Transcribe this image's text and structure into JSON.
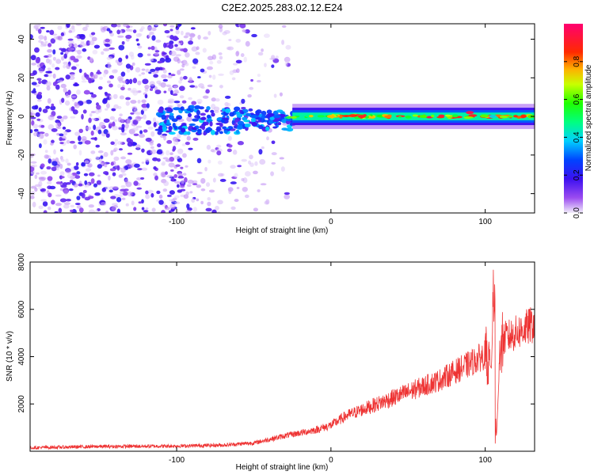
{
  "title": "C2E2.2025.283.02.12.E24",
  "chart_data": [
    {
      "type": "heatmap",
      "xlabel": "Height of straight line (km)",
      "ylabel": "Frequency (Hz)",
      "xlim": [
        -195,
        132
      ],
      "ylim": [
        -50,
        48
      ],
      "xticks": [
        -100,
        0,
        100
      ],
      "xtick_labels": [
        "-100",
        "0",
        "100"
      ],
      "yticks": [
        -40,
        -20,
        0,
        20,
        40
      ],
      "ytick_labels": [
        "-40",
        "-20",
        "0",
        "20",
        "40"
      ],
      "colorbar": {
        "label": "Normalized spectral amplitude",
        "range": [
          0,
          1
        ],
        "ticks": [
          0.0,
          0.2,
          0.4,
          0.6,
          0.8
        ],
        "tick_labels": [
          "0.0",
          "0.2",
          "0.4",
          "0.6",
          "0.8"
        ],
        "colormap": "rainbow (violet → blue → cyan → green → yellow → red → magenta)"
      },
      "description_points": [
        {
          "x": -100,
          "y": 4,
          "amp": 0.3
        },
        {
          "x": -50,
          "y": 0,
          "amp": 0.3
        },
        {
          "x": -35,
          "y": 0,
          "amp": 0.3
        },
        {
          "x": 0,
          "y": 0,
          "amp": 0.75
        },
        {
          "x": 20,
          "y": 0,
          "amp": 0.9
        },
        {
          "x": 60,
          "y": 0,
          "amp": 0.6
        },
        {
          "x": 90,
          "y": 2,
          "amp": 0.95
        },
        {
          "x": 105,
          "y": 0,
          "amp": 0.4
        },
        {
          "x": 130,
          "y": 0,
          "amp": 0.6
        }
      ]
    },
    {
      "type": "line",
      "xlabel": "Height of straight line (km)",
      "ylabel": "SNR (10 * v/v)",
      "xlim": [
        -195,
        132
      ],
      "ylim": [
        0,
        8000
      ],
      "xticks": [
        -100,
        0,
        100
      ],
      "xtick_labels": [
        "-100",
        "0",
        "100"
      ],
      "yticks": [
        2000,
        4000,
        6000,
        8000
      ],
      "ytick_labels": [
        "2000",
        "4000",
        "6000",
        "8000"
      ],
      "series": [
        {
          "name": "SNR",
          "color": "#ee3333",
          "x": [
            -195,
            -150,
            -100,
            -70,
            -50,
            -30,
            -10,
            0,
            10,
            30,
            50,
            70,
            90,
            100,
            104,
            106,
            107,
            110,
            120,
            132
          ],
          "y": [
            150,
            200,
            220,
            260,
            350,
            650,
            900,
            1100,
            1500,
            2000,
            2500,
            3000,
            3700,
            4100,
            3500,
            7900,
            200,
            4700,
            5000,
            5400
          ]
        }
      ]
    }
  ]
}
